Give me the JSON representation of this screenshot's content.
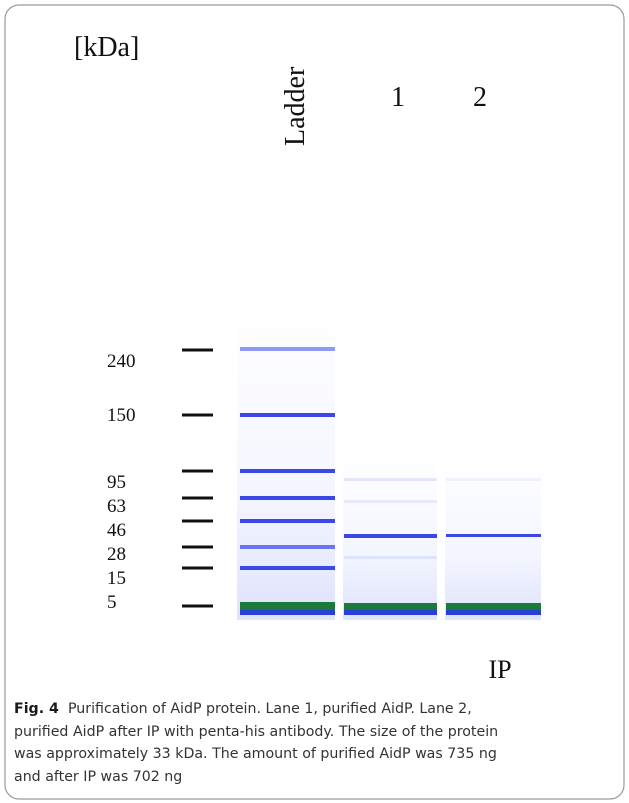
{
  "figure": {
    "unit_label": "[kDa]",
    "lane_labels": [
      "Ladder",
      "1",
      "2"
    ],
    "marker_labels": [
      "240",
      "150",
      "95",
      "63",
      "46",
      "28",
      "15",
      "5"
    ],
    "group_label": "IP"
  },
  "caption": {
    "label": "Fig. 4",
    "lines": [
      "Purification of AidP protein. Lane 1, purified AidP. Lane 2,",
      "purified AidP after IP with penta-his antibody. The size of the protein",
      "was approximately 33 kDa. The amount of purified AidP was 735 ng",
      "and after IP was 702 ng"
    ]
  }
}
